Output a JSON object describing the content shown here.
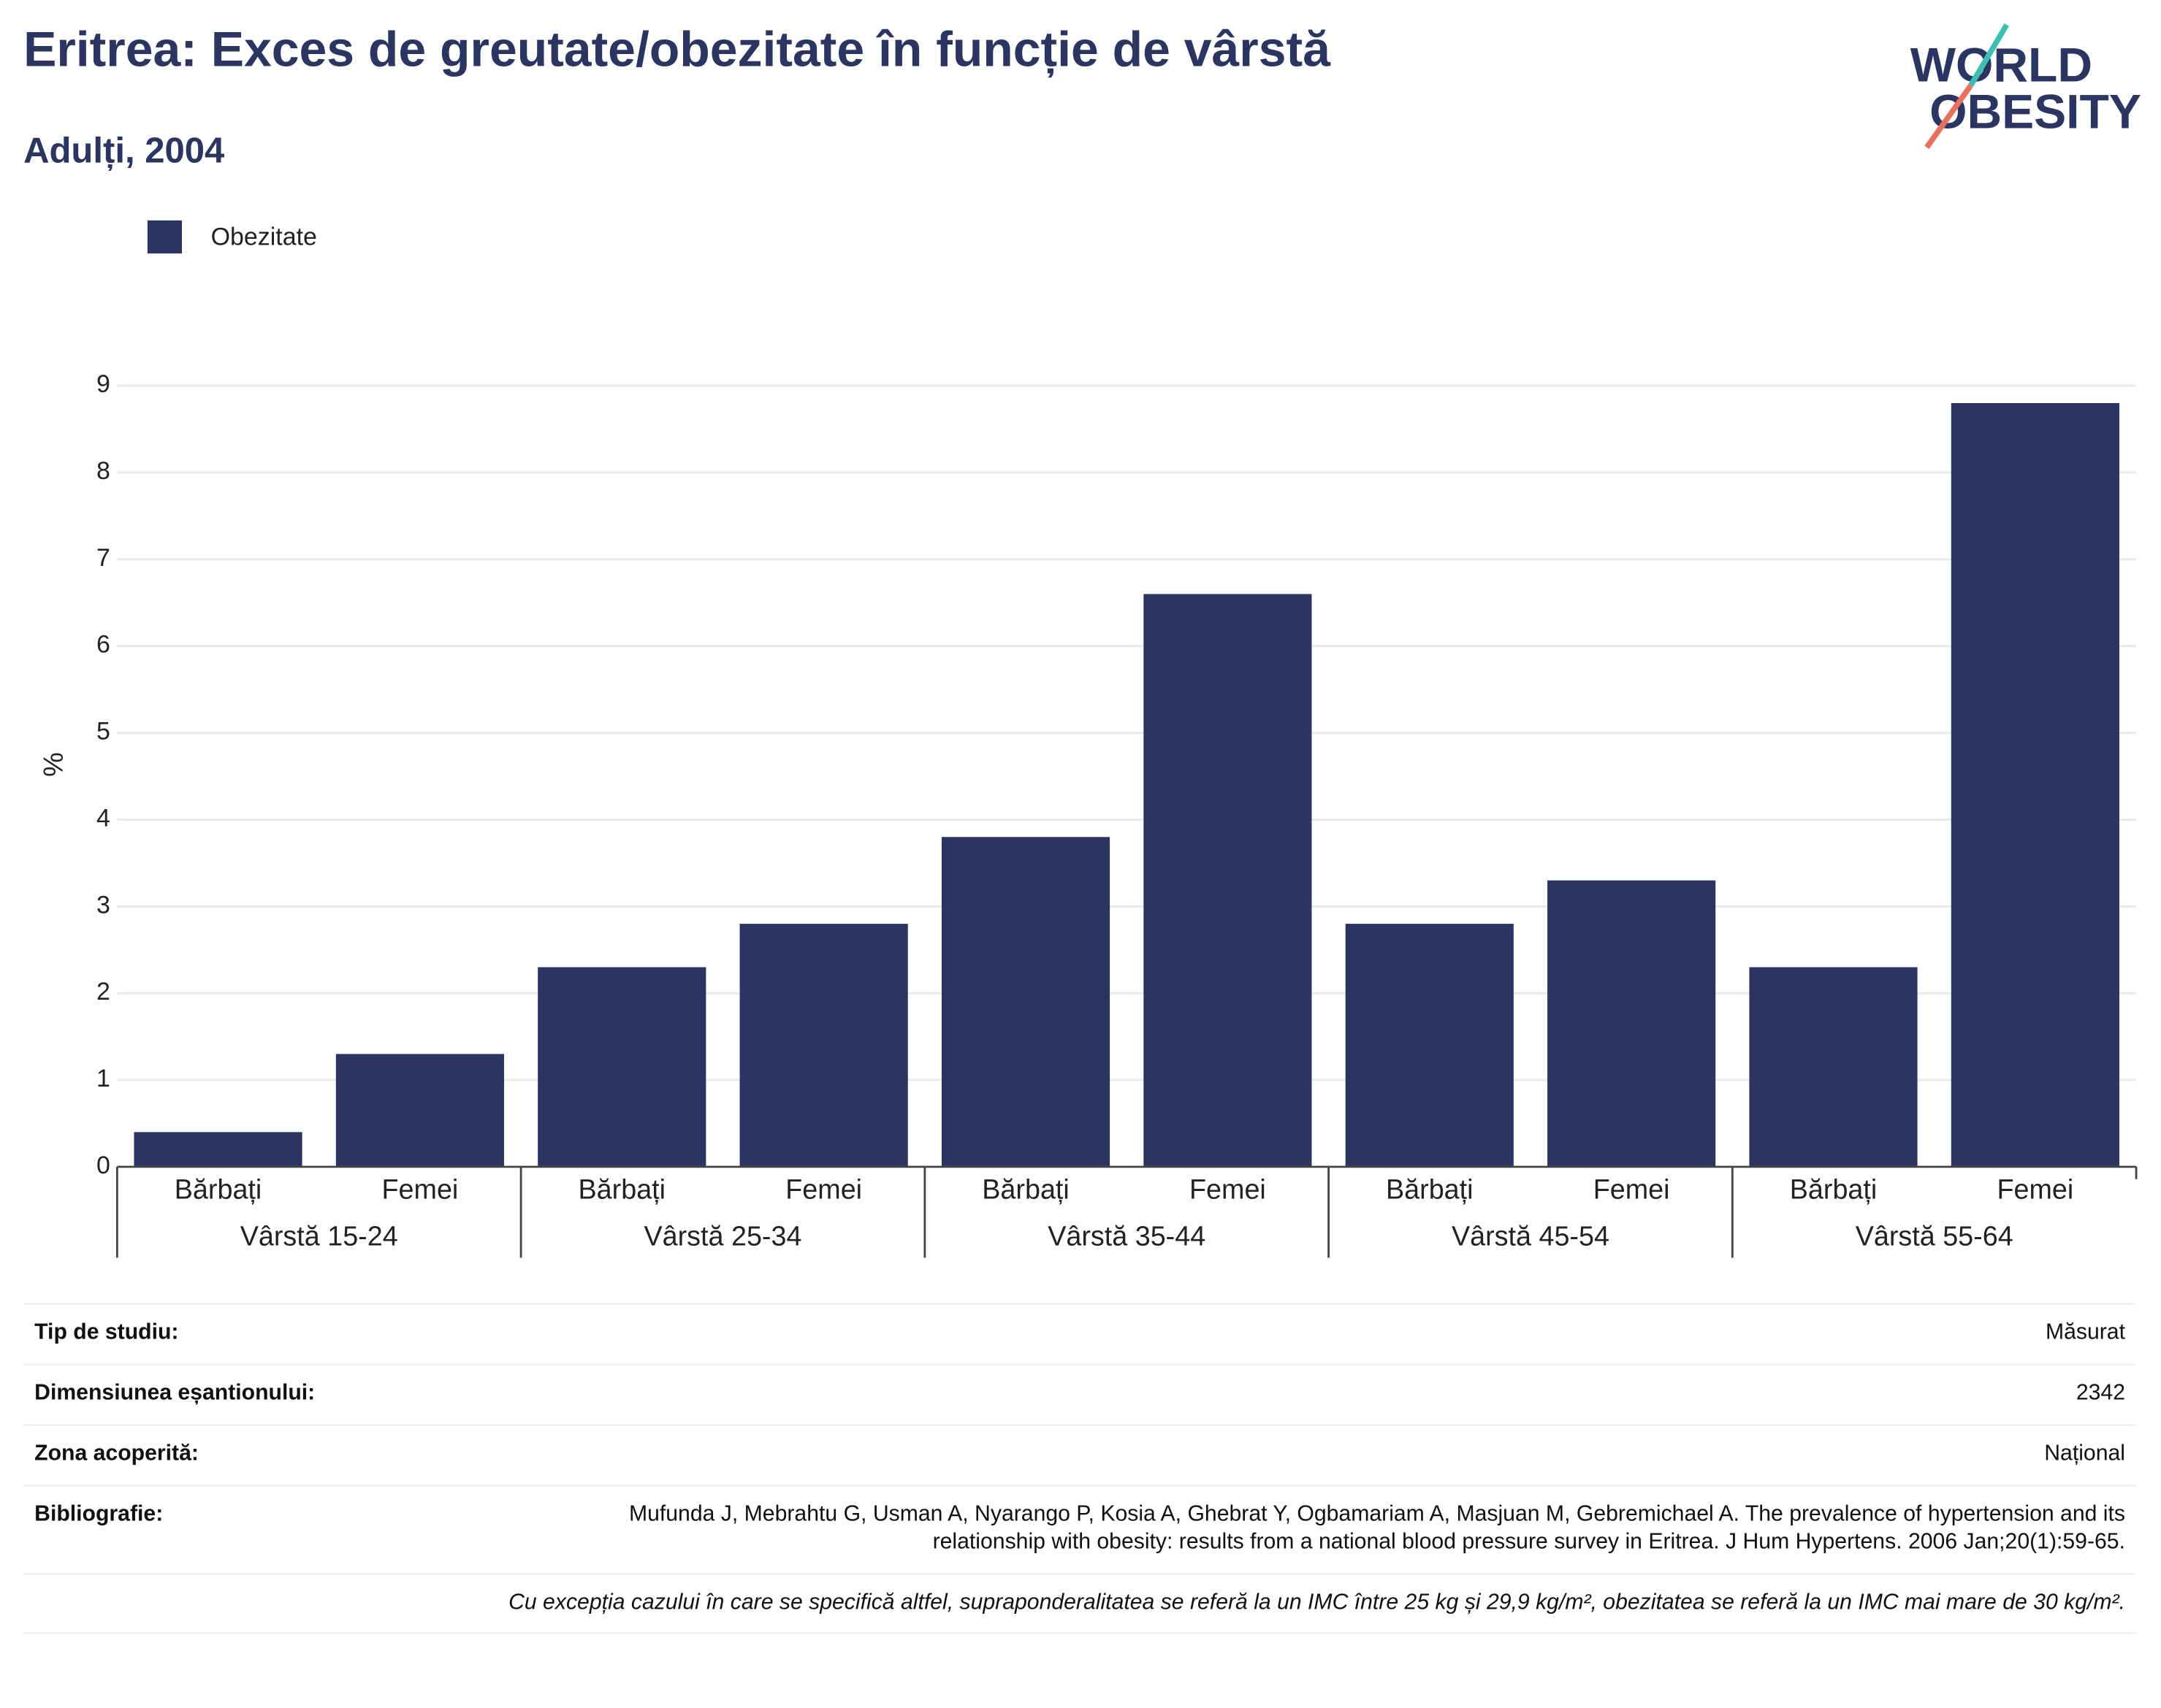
{
  "chart_data": {
    "type": "bar",
    "title": "Eritrea: Exces de greutate/obezitate în funcție de vârstă",
    "subtitle": "Adulți, 2004",
    "logo": [
      "WORLD",
      "OBESITY"
    ],
    "y_label": "%",
    "series_name": "Obezitate",
    "color": "#2b3562",
    "categories": [
      "Bărbați",
      "Femei",
      "Bărbați",
      "Femei",
      "Bărbați",
      "Femei",
      "Bărbați",
      "Femei",
      "Bărbați",
      "Femei"
    ],
    "groups": [
      "Vârstă 15-24",
      "Vârstă 25-34",
      "Vârstă 35-44",
      "Vârstă 45-54",
      "Vârstă 55-64"
    ],
    "values": [
      0.4,
      1.3,
      2.3,
      2.8,
      3.8,
      6.6,
      2.8,
      3.3,
      2.3,
      8.8
    ],
    "ylim": [
      0,
      9
    ],
    "yticks": [
      0,
      1,
      2,
      3,
      4,
      5,
      6,
      7,
      8,
      9
    ],
    "grid": true
  },
  "info": {
    "rows": [
      {
        "label": "Tip de studiu:",
        "value": "Măsurat"
      },
      {
        "label": "Dimensiunea eșantionului:",
        "value": "2342"
      },
      {
        "label": "Zona acoperită:",
        "value": "Național"
      },
      {
        "label": "Bibliografie:",
        "value": "Mufunda J, Mebrahtu G, Usman A, Nyarango P, Kosia A, Ghebrat Y, Ogbamariam A, Masjuan M, Gebremichael A. The prevalence of hypertension and its relationship with obesity: results from a national blood pressure survey in Eritrea. J Hum Hypertens. 2006 Jan;20(1):59-65."
      }
    ],
    "footnote": "Cu excepția cazului în care se specifică altfel, supraponderalitatea se referă la un IMC între 25 kg și 29,9 kg/m², obezitatea se referă la un IMC mai mare de 30 kg/m²."
  }
}
